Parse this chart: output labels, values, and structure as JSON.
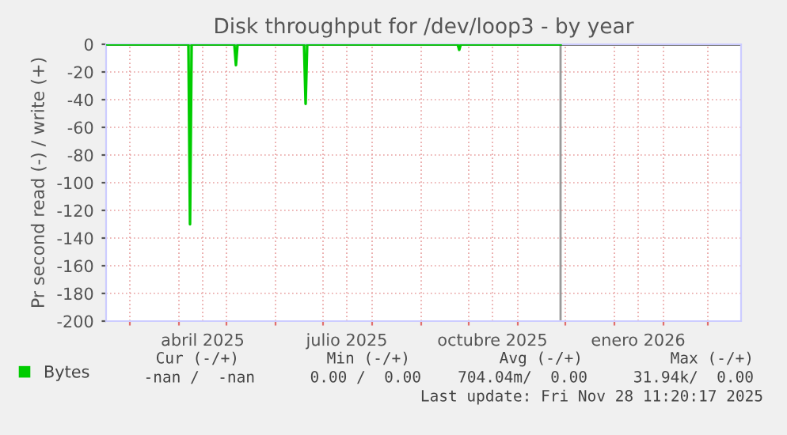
{
  "chart_data": {
    "type": "line",
    "title": "Disk throughput for /dev/loop3 - by year",
    "ylabel": "Pr second read (-) / write (+)",
    "series": [
      {
        "name": "Bytes",
        "color": "#00cc00",
        "x": [
          "2025-02-14",
          "2025-04-07",
          "2025-04-08",
          "2025-04-09",
          "2025-05-06",
          "2025-05-07",
          "2025-05-08",
          "2025-06-19",
          "2025-06-20",
          "2025-06-21",
          "2025-09-24",
          "2025-09-25",
          "2025-09-26",
          "2025-11-28"
        ],
        "values": [
          0,
          0,
          -130,
          0,
          0,
          -15,
          0,
          0,
          -43,
          0,
          0,
          -4,
          0,
          0
        ]
      }
    ],
    "xlim": [
      "2025-02-14",
      "2026-03-22"
    ],
    "xticks": [
      {
        "value": "2025-03-01",
        "label": null
      },
      {
        "value": "2025-04-01",
        "label": null
      },
      {
        "value": "2025-04-16",
        "label": "abril 2025"
      },
      {
        "value": "2025-05-01",
        "label": null
      },
      {
        "value": "2025-06-01",
        "label": null
      },
      {
        "value": "2025-07-01",
        "label": null
      },
      {
        "value": "2025-07-16",
        "label": "julio 2025"
      },
      {
        "value": "2025-08-01",
        "label": null
      },
      {
        "value": "2025-09-01",
        "label": null
      },
      {
        "value": "2025-10-01",
        "label": null
      },
      {
        "value": "2025-10-16",
        "label": "octubre 2025"
      },
      {
        "value": "2025-11-01",
        "label": null
      },
      {
        "value": "2025-12-01",
        "label": null
      },
      {
        "value": "2026-01-01",
        "label": null
      },
      {
        "value": "2026-01-16",
        "label": "enero 2026"
      },
      {
        "value": "2026-02-01",
        "label": null
      },
      {
        "value": "2026-03-01",
        "label": null
      }
    ],
    "ylim": [
      -200,
      0
    ],
    "yticks": [
      -200,
      -180,
      -160,
      -140,
      -120,
      -100,
      -80,
      -60,
      -40,
      -20,
      0
    ],
    "ref_lines": [
      {
        "axis": "x",
        "value": "2025-11-28",
        "label": null,
        "color": "#999999"
      }
    ],
    "grid": true,
    "legend": "bottom left",
    "marker": "none",
    "line_style": "solid",
    "annotations": [
      "Cur (-/+)",
      "Min (-/+)",
      "Avg (-/+)",
      "Max (-/+)",
      "-nan /  -nan",
      "0.00 /  0.00",
      "704.04m/  0.00",
      "31.94k/  0.00",
      "Last update: Fri Nov 28 11:20:17 2025"
    ]
  }
}
